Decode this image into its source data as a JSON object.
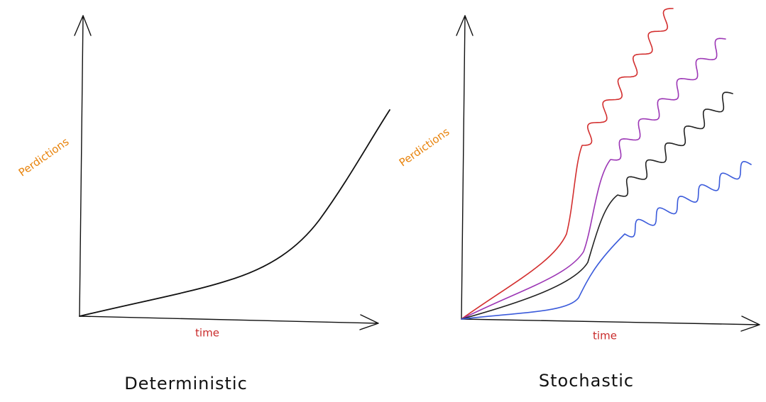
{
  "panels": [
    {
      "y_label": "Perdictions",
      "x_label": "time",
      "caption": "Deterministic"
    },
    {
      "y_label": "Perdictions",
      "x_label": "time",
      "caption": "Stochastic"
    }
  ]
}
